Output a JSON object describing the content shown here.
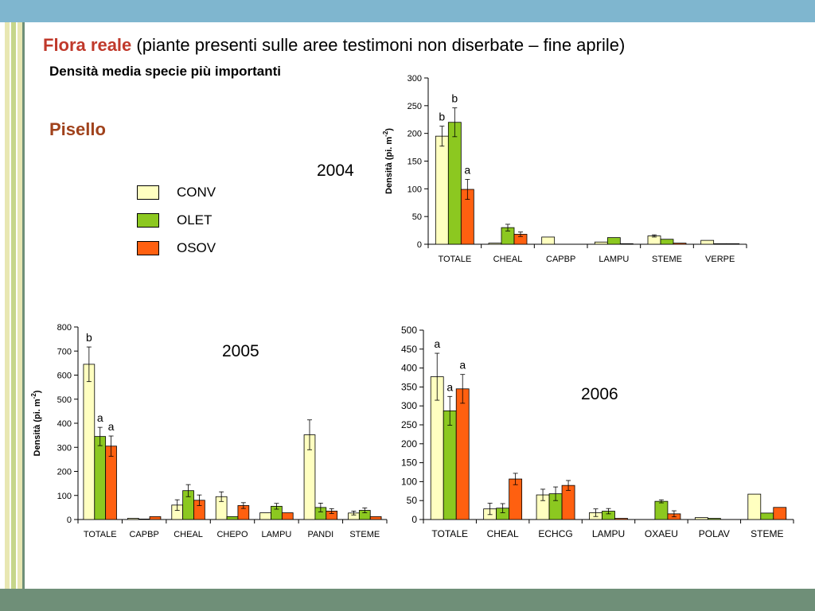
{
  "header": {
    "title_highlight": "Flora reale",
    "title_rest": " (piante presenti sulle aree testimoni non diserbate – fine aprile)",
    "subtitle": "Densità media specie più importanti",
    "crop": "Pisello"
  },
  "legend": [
    {
      "name": "CONV",
      "color": "#ffffc0"
    },
    {
      "name": "OLET",
      "color": "#8cc820"
    },
    {
      "name": "OSOV",
      "color": "#ff6010"
    }
  ],
  "colors": {
    "CONV": "#ffffc0",
    "OLET": "#8cc820",
    "OSOV": "#ff6010"
  },
  "chart_data": [
    {
      "type": "bar",
      "year_label": "2004",
      "ylabel": "Densità (pi. m-2)",
      "ylim": [
        0,
        300
      ],
      "yticks": [
        0,
        50,
        100,
        150,
        200,
        250,
        300
      ],
      "categories": [
        "TOTALE",
        "CHEAL",
        "CAPBP",
        "LAMPU",
        "STEME",
        "VERPE"
      ],
      "series": [
        {
          "name": "CONV",
          "values": [
            195,
            2,
            13,
            4,
            15,
            7
          ],
          "errors": [
            18,
            0,
            0,
            0,
            2,
            0
          ],
          "letters": [
            "b",
            "",
            "",
            "",
            "",
            ""
          ]
        },
        {
          "name": "OLET",
          "values": [
            220,
            30,
            0,
            12,
            9,
            1
          ],
          "errors": [
            26,
            6,
            0,
            0,
            0,
            0
          ],
          "letters": [
            "b",
            "",
            "",
            "",
            "",
            ""
          ]
        },
        {
          "name": "OSOV",
          "values": [
            99,
            18,
            0,
            1,
            2,
            1
          ],
          "errors": [
            18,
            4,
            0,
            0,
            0,
            0
          ],
          "letters": [
            "a",
            "",
            "",
            "",
            "",
            ""
          ]
        }
      ]
    },
    {
      "type": "bar",
      "year_label": "2005",
      "ylabel": "Densità (pi. m-2)",
      "ylim": [
        0,
        800
      ],
      "yticks": [
        0,
        100,
        200,
        300,
        400,
        500,
        600,
        700,
        800
      ],
      "categories": [
        "TOTALE",
        "CAPBP",
        "CHEAL",
        "CHEPO",
        "LAMPU",
        "PANDI",
        "STEME"
      ],
      "series": [
        {
          "name": "CONV",
          "values": [
            645,
            5,
            60,
            95,
            28,
            352,
            27
          ],
          "errors": [
            72,
            0,
            22,
            20,
            0,
            62,
            8
          ],
          "letters": [
            "b",
            "",
            "",
            "",
            "",
            "",
            ""
          ]
        },
        {
          "name": "OLET",
          "values": [
            345,
            2,
            120,
            12,
            55,
            50,
            38
          ],
          "errors": [
            38,
            0,
            25,
            0,
            12,
            18,
            10
          ],
          "letters": [
            "a",
            "",
            "",
            "",
            "",
            "",
            ""
          ]
        },
        {
          "name": "OSOV",
          "values": [
            305,
            12,
            80,
            58,
            28,
            35,
            12
          ],
          "errors": [
            42,
            0,
            22,
            12,
            0,
            10,
            0
          ],
          "letters": [
            "a",
            "",
            "",
            "",
            "",
            "",
            ""
          ]
        }
      ]
    },
    {
      "type": "bar",
      "year_label": "2006",
      "ylabel": "",
      "ylim": [
        0,
        500
      ],
      "yticks": [
        0,
        50,
        100,
        150,
        200,
        250,
        300,
        350,
        400,
        450,
        500
      ],
      "categories": [
        "TOTALE",
        "CHEAL",
        "ECHCG",
        "LAMPU",
        "OXAEU",
        "POLAV",
        "STEME"
      ],
      "series": [
        {
          "name": "CONV",
          "values": [
            377,
            28,
            65,
            18,
            0,
            5,
            67
          ],
          "errors": [
            62,
            15,
            15,
            10,
            0,
            0,
            0
          ],
          "letters": [
            "a",
            "",
            "",
            "",
            "",
            "",
            ""
          ]
        },
        {
          "name": "OLET",
          "values": [
            287,
            30,
            68,
            22,
            48,
            3,
            17
          ],
          "errors": [
            38,
            12,
            18,
            7,
            4,
            0,
            0
          ],
          "letters": [
            "a",
            "",
            "",
            "",
            "",
            "",
            ""
          ]
        },
        {
          "name": "OSOV",
          "values": [
            345,
            107,
            90,
            3,
            15,
            0,
            32
          ],
          "errors": [
            38,
            15,
            13,
            0,
            8,
            0,
            0
          ],
          "letters": [
            "a",
            "",
            "",
            "",
            "",
            "",
            ""
          ]
        }
      ]
    }
  ]
}
